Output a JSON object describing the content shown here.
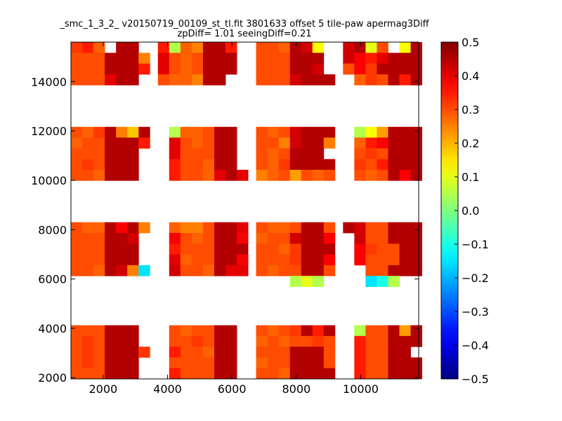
{
  "chart_data": {
    "type": "heatmap",
    "title": "_smc_1_3_2_ v20150719_00109_st_tl.fit 3801633 offset 5 tile-paw apermag3Diff",
    "subtitle": "zpDiff= 1.01 seeingDiff=0.21",
    "xlabel": "",
    "ylabel": "",
    "xlim": [
      1000,
      11800
    ],
    "ylim": [
      1950,
      15600
    ],
    "x_ticks": [
      2000,
      4000,
      6000,
      8000,
      10000
    ],
    "y_ticks": [
      2000,
      4000,
      6000,
      8000,
      10000,
      12000,
      14000
    ],
    "x_tick_labels": [
      "2000",
      "4000",
      "6000",
      "8000",
      "10000"
    ],
    "y_tick_labels": [
      "2000",
      "4000",
      "6000",
      "8000",
      "10000",
      "12000",
      "14000"
    ],
    "colorbar": {
      "colormap": "jet",
      "range": [
        -0.5,
        0.5
      ],
      "ticks": [
        0.5,
        0.4,
        0.3,
        0.2,
        0.1,
        0.0,
        -0.1,
        -0.2,
        -0.3,
        -0.4,
        -0.5
      ],
      "tick_labels": [
        "0.5",
        "0.4",
        "0.3",
        "0.2",
        "0.1",
        "0.0",
        "−0.1",
        "−0.2",
        "−0.3",
        "−0.4",
        "−0.5"
      ]
    },
    "grid": false,
    "cell_width": 350,
    "cell_height": 435,
    "col_x_start": [
      1000,
      1350,
      1700,
      2050,
      2400,
      2750,
      3100,
      3700,
      4050,
      4400,
      4750,
      5100,
      5450,
      5800,
      6150,
      6750,
      7100,
      7450,
      7800,
      8150,
      8500,
      8850,
      9450,
      9800,
      10150,
      10500,
      10850,
      11200,
      11550
    ],
    "row_y_start": [
      15165,
      14730,
      14295,
      13860,
      11730,
      11295,
      10860,
      10425,
      9990,
      7865,
      7430,
      6995,
      6560,
      6125,
      5690,
      5255,
      3690,
      3255,
      2820,
      2385,
      1950
    ],
    "cell_values": [
      [
        0.32,
        0.35,
        0.28,
        null,
        0.45,
        0.45,
        null,
        0.35,
        0.05,
        0.28,
        0.25,
        0.45,
        0.45,
        0.35,
        null,
        0.3,
        0.3,
        0.28,
        0.45,
        0.42,
        0.12,
        null,
        0.42,
        0.45,
        0.1,
        0.3,
        null,
        0.12,
        0.45
      ],
      [
        0.3,
        0.3,
        0.3,
        0.45,
        0.45,
        0.45,
        0.25,
        0.4,
        0.3,
        0.28,
        0.3,
        0.45,
        0.45,
        0.45,
        null,
        0.3,
        0.3,
        0.3,
        0.45,
        0.45,
        0.45,
        null,
        0.42,
        0.38,
        0.35,
        0.4,
        0.45,
        0.45,
        0.45
      ],
      [
        0.3,
        0.3,
        0.3,
        0.45,
        0.45,
        0.45,
        0.35,
        0.4,
        0.3,
        0.28,
        0.3,
        0.45,
        0.45,
        0.45,
        null,
        0.3,
        0.3,
        0.3,
        0.45,
        0.45,
        0.42,
        null,
        0.3,
        0.38,
        0.32,
        0.45,
        0.45,
        0.45,
        0.45
      ],
      [
        0.3,
        0.3,
        0.3,
        0.4,
        0.45,
        0.45,
        null,
        0.3,
        0.28,
        0.28,
        0.25,
        0.45,
        0.45,
        null,
        null,
        0.3,
        0.3,
        0.3,
        0.42,
        0.45,
        0.45,
        0.45,
        null,
        0.28,
        0.32,
        0.3,
        0.45,
        0.35,
        0.45
      ],
      [
        0.3,
        0.28,
        0.32,
        0.45,
        0.25,
        0.18,
        0.45,
        null,
        0.05,
        0.28,
        0.28,
        0.3,
        0.45,
        0.45,
        null,
        0.3,
        0.28,
        0.3,
        0.42,
        0.45,
        0.45,
        0.45,
        null,
        0.05,
        0.12,
        0.22,
        0.45,
        0.45,
        0.45
      ],
      [
        0.28,
        0.3,
        0.3,
        0.45,
        0.45,
        0.45,
        0.35,
        null,
        0.4,
        0.3,
        0.28,
        0.3,
        0.45,
        0.45,
        null,
        0.3,
        0.3,
        0.25,
        0.42,
        0.45,
        0.45,
        0.25,
        null,
        0.28,
        0.35,
        0.38,
        0.45,
        0.45,
        0.45
      ],
      [
        0.3,
        0.3,
        0.3,
        0.45,
        0.45,
        0.45,
        null,
        null,
        0.4,
        0.3,
        0.3,
        0.3,
        0.45,
        0.45,
        null,
        0.3,
        0.28,
        0.3,
        0.45,
        0.45,
        0.45,
        null,
        null,
        0.3,
        0.32,
        0.3,
        0.45,
        0.45,
        0.45
      ],
      [
        0.3,
        0.32,
        0.3,
        0.45,
        0.45,
        0.45,
        null,
        null,
        0.35,
        0.3,
        0.3,
        0.28,
        0.45,
        0.45,
        null,
        0.3,
        0.28,
        0.32,
        0.45,
        0.45,
        0.45,
        0.45,
        null,
        0.32,
        0.3,
        0.35,
        0.45,
        0.45,
        0.45
      ],
      [
        0.3,
        0.3,
        0.28,
        0.45,
        0.45,
        0.45,
        null,
        null,
        0.35,
        0.3,
        0.3,
        0.28,
        0.4,
        0.45,
        0.4,
        0.25,
        0.28,
        0.3,
        0.22,
        0.3,
        0.28,
        0.3,
        null,
        0.3,
        0.28,
        0.3,
        0.45,
        0.38,
        0.45
      ],
      [
        0.3,
        0.28,
        0.28,
        0.45,
        0.38,
        0.45,
        0.25,
        null,
        0.28,
        0.25,
        0.25,
        0.3,
        0.45,
        0.45,
        0.4,
        0.3,
        0.28,
        0.28,
        0.3,
        0.45,
        0.45,
        0.3,
        0.45,
        0.42,
        0.3,
        0.3,
        0.45,
        0.45,
        0.45
      ],
      [
        0.3,
        0.3,
        0.3,
        0.45,
        0.45,
        0.42,
        null,
        null,
        0.38,
        0.3,
        0.28,
        0.3,
        0.45,
        0.45,
        0.38,
        0.28,
        0.3,
        0.3,
        0.42,
        0.45,
        0.45,
        0.38,
        null,
        0.42,
        0.3,
        0.3,
        0.45,
        0.45,
        0.45
      ],
      [
        0.3,
        0.3,
        0.3,
        0.45,
        0.45,
        0.45,
        null,
        null,
        0.35,
        0.3,
        0.3,
        0.3,
        0.45,
        0.45,
        0.45,
        0.3,
        0.3,
        0.28,
        0.32,
        0.45,
        0.45,
        0.45,
        null,
        0.38,
        0.32,
        0.3,
        0.3,
        0.45,
        0.45
      ],
      [
        0.3,
        0.3,
        0.3,
        0.45,
        0.45,
        0.45,
        null,
        null,
        0.4,
        0.28,
        0.3,
        0.3,
        0.45,
        0.45,
        0.38,
        0.3,
        0.3,
        0.3,
        0.32,
        0.45,
        0.45,
        0.38,
        null,
        0.38,
        0.3,
        0.3,
        0.3,
        0.45,
        0.45
      ],
      [
        0.3,
        0.3,
        0.28,
        0.45,
        0.42,
        0.25,
        -0.15,
        null,
        0.42,
        0.3,
        0.3,
        0.28,
        0.45,
        0.4,
        0.4,
        0.3,
        0.28,
        0.3,
        0.3,
        0.45,
        0.45,
        0.3,
        null,
        null,
        0.3,
        0.3,
        0.45,
        0.45,
        0.45
      ],
      [
        null,
        null,
        null,
        null,
        null,
        null,
        null,
        null,
        null,
        null,
        null,
        null,
        null,
        null,
        null,
        null,
        null,
        null,
        0.05,
        0.1,
        0.05,
        null,
        null,
        null,
        -0.15,
        -0.1,
        0.05,
        null,
        null
      ],
      [
        null,
        null,
        null,
        null,
        null,
        null,
        null,
        null,
        null,
        null,
        null,
        null,
        null,
        null,
        null,
        null,
        null,
        null,
        null,
        null,
        null,
        null,
        null,
        null,
        null,
        null,
        null,
        null,
        null
      ],
      [
        0.3,
        0.3,
        0.3,
        0.45,
        0.45,
        0.45,
        null,
        null,
        0.3,
        0.28,
        0.3,
        0.3,
        0.45,
        0.45,
        null,
        0.3,
        0.28,
        0.3,
        0.32,
        0.45,
        0.35,
        0.45,
        null,
        0.05,
        0.3,
        0.3,
        0.45,
        0.22,
        0.45
      ],
      [
        0.3,
        0.32,
        0.3,
        0.45,
        0.45,
        0.45,
        null,
        null,
        0.3,
        0.3,
        0.32,
        0.3,
        0.45,
        0.45,
        null,
        0.28,
        0.3,
        0.28,
        0.3,
        0.3,
        0.32,
        0.3,
        null,
        0.35,
        0.3,
        0.3,
        0.45,
        0.45,
        0.45
      ],
      [
        0.3,
        0.32,
        0.3,
        0.45,
        0.45,
        0.45,
        0.32,
        null,
        0.35,
        0.3,
        0.3,
        0.28,
        0.45,
        0.45,
        null,
        0.3,
        0.3,
        0.3,
        0.45,
        0.45,
        0.45,
        0.3,
        null,
        0.35,
        0.3,
        0.3,
        0.45,
        0.45,
        null
      ],
      [
        0.3,
        0.32,
        0.3,
        0.45,
        0.45,
        0.45,
        null,
        null,
        0.3,
        0.3,
        0.3,
        0.3,
        0.45,
        0.45,
        null,
        0.28,
        0.3,
        0.3,
        0.45,
        0.45,
        0.45,
        0.3,
        null,
        0.35,
        0.3,
        0.3,
        0.45,
        0.45,
        0.45
      ],
      [
        0.3,
        0.3,
        0.3,
        0.45,
        0.45,
        0.45,
        null,
        null,
        0.35,
        0.3,
        0.3,
        0.3,
        0.45,
        0.45,
        null,
        0.3,
        0.3,
        0.28,
        0.45,
        0.45,
        0.45,
        0.45,
        null,
        0.35,
        0.3,
        0.3,
        0.45,
        0.45,
        0.45
      ]
    ]
  }
}
